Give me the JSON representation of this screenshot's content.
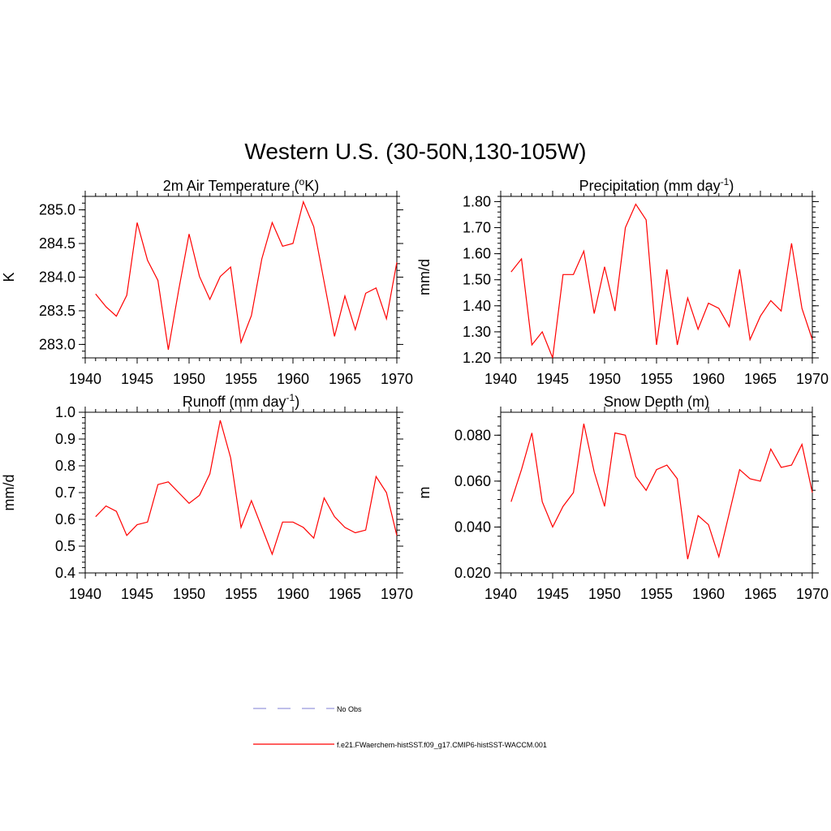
{
  "figure": {
    "title": "Western U.S. (30-50N,130-105W)"
  },
  "legend": {
    "items": [
      {
        "label": "No Obs",
        "color": "#9999dd",
        "dash": true
      },
      {
        "label": "f.e21.FWaerchem-histSST.f09_g17.CMIP6-histSST-WACCM.001",
        "color": "#ff0000",
        "dash": false
      }
    ]
  },
  "chart_data": [
    {
      "type": "line",
      "title": "2m Air Temperature (oK)",
      "title_parts": {
        "pre": "2m Air Temperature (",
        "sup": "o",
        "post": "K)"
      },
      "xlabel": "",
      "ylabel": "K",
      "xlim": [
        1940,
        1970
      ],
      "ylim": [
        282.8,
        285.2
      ],
      "xticks": [
        1940,
        1945,
        1950,
        1955,
        1960,
        1965,
        1970
      ],
      "xtick_labels": [
        "1940",
        "1945",
        "1950",
        "1955",
        "1960",
        "1965",
        "1970"
      ],
      "yticks": [
        283.0,
        283.5,
        284.0,
        284.5,
        285.0
      ],
      "ytick_labels": [
        "283.0",
        "283.5",
        "284.0",
        "284.5",
        "285.0"
      ],
      "yminor_step": 0.1,
      "grid": false,
      "x": [
        1941,
        1942,
        1943,
        1944,
        1945,
        1946,
        1947,
        1948,
        1949,
        1950,
        1951,
        1952,
        1953,
        1954,
        1955,
        1956,
        1957,
        1958,
        1959,
        1960,
        1961,
        1962,
        1963,
        1964,
        1965,
        1966,
        1967,
        1968,
        1969,
        1970
      ],
      "series": [
        {
          "color": "#ff0000",
          "values": [
            283.75,
            283.56,
            283.42,
            283.73,
            284.81,
            284.25,
            283.95,
            282.92,
            283.81,
            284.64,
            284.01,
            283.67,
            284.01,
            284.15,
            283.03,
            283.43,
            284.27,
            284.81,
            284.46,
            284.5,
            285.12,
            284.75,
            283.93,
            283.12,
            283.72,
            283.22,
            283.76,
            283.84,
            283.38,
            284.22
          ]
        }
      ]
    },
    {
      "type": "line",
      "title": "Precipitation (mm day-1)",
      "title_parts": {
        "pre": "Precipitation (mm day",
        "sup": "-1",
        "post": ")"
      },
      "xlabel": "",
      "ylabel": "mm/d",
      "xlim": [
        1940,
        1970
      ],
      "ylim": [
        1.2,
        1.82
      ],
      "xticks": [
        1940,
        1945,
        1950,
        1955,
        1960,
        1965,
        1970
      ],
      "xtick_labels": [
        "1940",
        "1945",
        "1950",
        "1955",
        "1960",
        "1965",
        "1970"
      ],
      "yticks": [
        1.2,
        1.3,
        1.4,
        1.5,
        1.6,
        1.7,
        1.8
      ],
      "ytick_labels": [
        "1.20",
        "1.30",
        "1.40",
        "1.50",
        "1.60",
        "1.70",
        "1.80"
      ],
      "yminor_step": 0.02,
      "grid": false,
      "x": [
        1941,
        1942,
        1943,
        1944,
        1945,
        1946,
        1947,
        1948,
        1949,
        1950,
        1951,
        1952,
        1953,
        1954,
        1955,
        1956,
        1957,
        1958,
        1959,
        1960,
        1961,
        1962,
        1963,
        1964,
        1965,
        1966,
        1967,
        1968,
        1969,
        1970
      ],
      "series": [
        {
          "color": "#ff0000",
          "values": [
            1.53,
            1.58,
            1.25,
            1.3,
            1.2,
            1.52,
            1.52,
            1.61,
            1.37,
            1.55,
            1.38,
            1.7,
            1.79,
            1.73,
            1.25,
            1.54,
            1.25,
            1.43,
            1.31,
            1.41,
            1.39,
            1.32,
            1.54,
            1.27,
            1.36,
            1.42,
            1.38,
            1.64,
            1.39,
            1.27
          ]
        }
      ]
    },
    {
      "type": "line",
      "title": "Runoff (mm day-1)",
      "title_parts": {
        "pre": "Runoff (mm day",
        "sup": "-1",
        "post": ")"
      },
      "xlabel": "",
      "ylabel": "mm/d",
      "xlim": [
        1940,
        1970
      ],
      "ylim": [
        0.4,
        1.0
      ],
      "xticks": [
        1940,
        1945,
        1950,
        1955,
        1960,
        1965,
        1970
      ],
      "xtick_labels": [
        "1940",
        "1945",
        "1950",
        "1955",
        "1960",
        "1965",
        "1970"
      ],
      "yticks": [
        0.4,
        0.5,
        0.6,
        0.7,
        0.8,
        0.9,
        1.0
      ],
      "ytick_labels": [
        "0.4",
        "0.5",
        "0.6",
        "0.7",
        "0.8",
        "0.9",
        "1.0"
      ],
      "yminor_step": 0.02,
      "grid": false,
      "x": [
        1941,
        1942,
        1943,
        1944,
        1945,
        1946,
        1947,
        1948,
        1949,
        1950,
        1951,
        1952,
        1953,
        1954,
        1955,
        1956,
        1957,
        1958,
        1959,
        1960,
        1961,
        1962,
        1963,
        1964,
        1965,
        1966,
        1967,
        1968,
        1969,
        1970
      ],
      "series": [
        {
          "color": "#ff0000",
          "values": [
            0.61,
            0.65,
            0.63,
            0.54,
            0.58,
            0.59,
            0.73,
            0.74,
            0.7,
            0.66,
            0.69,
            0.77,
            0.97,
            0.83,
            0.57,
            0.67,
            0.57,
            0.47,
            0.59,
            0.59,
            0.57,
            0.53,
            0.68,
            0.61,
            0.57,
            0.55,
            0.56,
            0.76,
            0.7,
            0.54
          ]
        }
      ]
    },
    {
      "type": "line",
      "title": "Snow Depth (m)",
      "title_parts": {
        "pre": "Snow Depth (m)",
        "sup": "",
        "post": ""
      },
      "xlabel": "",
      "ylabel": "m",
      "xlim": [
        1940,
        1970
      ],
      "ylim": [
        0.02,
        0.09
      ],
      "xticks": [
        1940,
        1945,
        1950,
        1955,
        1960,
        1965,
        1970
      ],
      "xtick_labels": [
        "1940",
        "1945",
        "1950",
        "1955",
        "1960",
        "1965",
        "1970"
      ],
      "yticks": [
        0.02,
        0.04,
        0.06,
        0.08
      ],
      "ytick_labels": [
        "0.020",
        "0.040",
        "0.060",
        "0.080"
      ],
      "yminor_step": 0.004,
      "grid": false,
      "x": [
        1941,
        1942,
        1943,
        1944,
        1945,
        1946,
        1947,
        1948,
        1949,
        1950,
        1951,
        1952,
        1953,
        1954,
        1955,
        1956,
        1957,
        1958,
        1959,
        1960,
        1961,
        1962,
        1963,
        1964,
        1965,
        1966,
        1967,
        1968,
        1969,
        1970
      ],
      "series": [
        {
          "color": "#ff0000",
          "values": [
            0.051,
            0.065,
            0.081,
            0.051,
            0.04,
            0.049,
            0.055,
            0.085,
            0.064,
            0.049,
            0.081,
            0.08,
            0.062,
            0.056,
            0.065,
            0.067,
            0.061,
            0.026,
            0.045,
            0.041,
            0.027,
            0.046,
            0.065,
            0.061,
            0.06,
            0.074,
            0.066,
            0.067,
            0.076,
            0.055
          ]
        }
      ]
    }
  ]
}
